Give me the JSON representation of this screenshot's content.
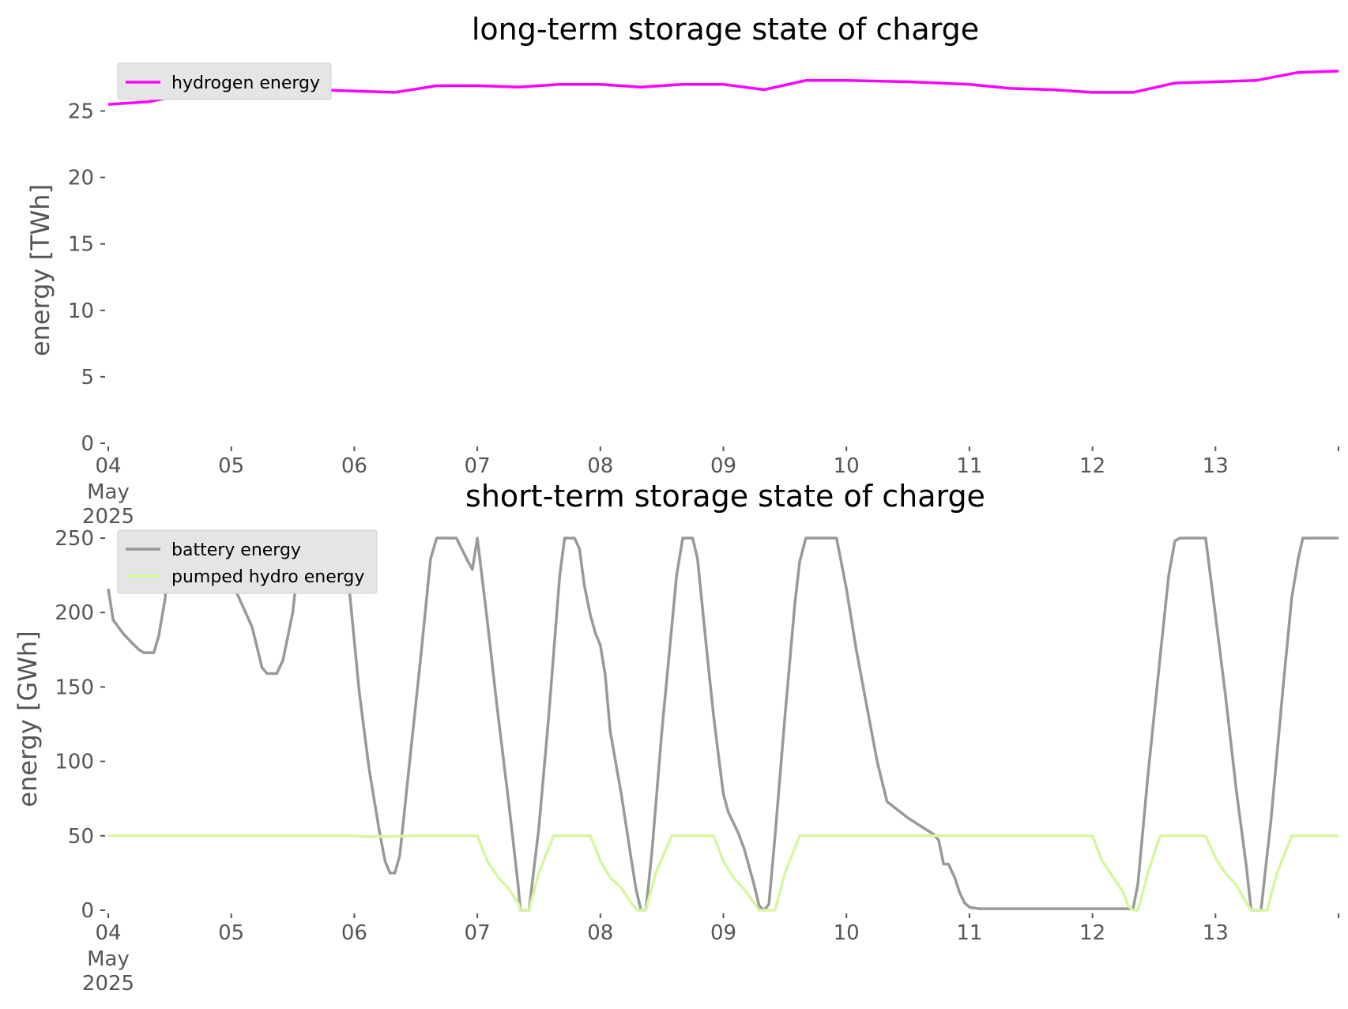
{
  "chart_data": [
    {
      "type": "line",
      "title": "long-term storage state of charge",
      "xlabel": "",
      "ylabel": "energy [TWh]",
      "xlim": [
        0,
        10
      ],
      "ylim": [
        0,
        28
      ],
      "grid": false,
      "legend_position": "top-left",
      "x_ticks": [
        {
          "x": 0,
          "label": "04",
          "sub": [
            "May",
            "2025"
          ]
        },
        {
          "x": 1,
          "label": "05"
        },
        {
          "x": 2,
          "label": "06"
        },
        {
          "x": 3,
          "label": "07"
        },
        {
          "x": 4,
          "label": "08"
        },
        {
          "x": 5,
          "label": "09"
        },
        {
          "x": 6,
          "label": "10"
        },
        {
          "x": 7,
          "label": "11"
        },
        {
          "x": 8,
          "label": "12"
        },
        {
          "x": 9,
          "label": "13"
        },
        {
          "x": 10,
          "label": ""
        }
      ],
      "y_ticks": [
        0,
        5,
        10,
        15,
        20,
        25
      ],
      "series": [
        {
          "name": "hydrogen energy",
          "color": "#ff00ff",
          "points": [
            [
              0,
              25.5
            ],
            [
              0.33,
              25.7
            ],
            [
              0.67,
              26.3
            ],
            [
              1,
              26.3
            ],
            [
              1.33,
              26.2
            ],
            [
              1.67,
              26.6
            ],
            [
              2,
              26.5
            ],
            [
              2.33,
              26.4
            ],
            [
              2.67,
              26.9
            ],
            [
              3,
              26.9
            ],
            [
              3.33,
              26.8
            ],
            [
              3.67,
              27.0
            ],
            [
              4,
              27.0
            ],
            [
              4.33,
              26.8
            ],
            [
              4.67,
              27.0
            ],
            [
              5,
              27.0
            ],
            [
              5.33,
              26.6
            ],
            [
              5.67,
              27.3
            ],
            [
              6,
              27.3
            ],
            [
              6.5,
              27.2
            ],
            [
              7,
              27.0
            ],
            [
              7.33,
              26.7
            ],
            [
              7.67,
              26.6
            ],
            [
              8,
              26.4
            ],
            [
              8.33,
              26.4
            ],
            [
              8.67,
              27.1
            ],
            [
              9,
              27.2
            ],
            [
              9.33,
              27.3
            ],
            [
              9.67,
              27.9
            ],
            [
              10,
              28.0
            ]
          ]
        }
      ]
    },
    {
      "type": "line",
      "title": "short-term storage state of charge",
      "xlabel": "",
      "ylabel": "energy [GWh]",
      "xlim": [
        0,
        10
      ],
      "ylim": [
        0,
        250
      ],
      "grid": false,
      "legend_position": "top-left",
      "x_ticks": [
        {
          "x": 0,
          "label": "04",
          "sub": [
            "May",
            "2025"
          ]
        },
        {
          "x": 1,
          "label": "05"
        },
        {
          "x": 2,
          "label": "06"
        },
        {
          "x": 3,
          "label": "07"
        },
        {
          "x": 4,
          "label": "08"
        },
        {
          "x": 5,
          "label": "09"
        },
        {
          "x": 6,
          "label": "10"
        },
        {
          "x": 7,
          "label": "11"
        },
        {
          "x": 8,
          "label": "12"
        },
        {
          "x": 9,
          "label": "13"
        },
        {
          "x": 10,
          "label": ""
        }
      ],
      "y_ticks": [
        0,
        50,
        100,
        150,
        200,
        250
      ],
      "series": [
        {
          "name": "battery energy",
          "color": "#999999",
          "points": [
            [
              0,
              216
            ],
            [
              0.04,
              195
            ],
            [
              0.12,
              186
            ],
            [
              0.2,
              179
            ],
            [
              0.25,
              175
            ],
            [
              0.29,
              173
            ],
            [
              0.33,
              173
            ],
            [
              0.37,
              173
            ],
            [
              0.41,
              184
            ],
            [
              0.46,
              208
            ],
            [
              0.5,
              240
            ],
            [
              0.54,
              250
            ],
            [
              0.67,
              250
            ],
            [
              0.92,
              250
            ],
            [
              1,
              250
            ],
            [
              1.04,
              214
            ],
            [
              1.1,
              203
            ],
            [
              1.17,
              190
            ],
            [
              1.25,
              163
            ],
            [
              1.29,
              159
            ],
            [
              1.37,
              159
            ],
            [
              1.42,
              168
            ],
            [
              1.5,
              200
            ],
            [
              1.54,
              230
            ],
            [
              1.62,
              250
            ],
            [
              1.75,
              250
            ],
            [
              1.8,
              240
            ],
            [
              1.88,
              216
            ],
            [
              1.96,
              215
            ],
            [
              2.04,
              147
            ],
            [
              2.12,
              95
            ],
            [
              2.2,
              55
            ],
            [
              2.25,
              33
            ],
            [
              2.29,
              25
            ],
            [
              2.33,
              25
            ],
            [
              2.37,
              37
            ],
            [
              2.45,
              100
            ],
            [
              2.54,
              170
            ],
            [
              2.62,
              236
            ],
            [
              2.67,
              250
            ],
            [
              2.83,
              250
            ],
            [
              2.92,
              235
            ],
            [
              2.96,
              229
            ],
            [
              3,
              250
            ],
            [
              3.08,
              195
            ],
            [
              3.16,
              137
            ],
            [
              3.25,
              76
            ],
            [
              3.33,
              18
            ],
            [
              3.35,
              0
            ],
            [
              3.42,
              0
            ],
            [
              3.5,
              55
            ],
            [
              3.58,
              130
            ],
            [
              3.67,
              225
            ],
            [
              3.71,
              250
            ],
            [
              3.79,
              250
            ],
            [
              3.83,
              243
            ],
            [
              3.87,
              218
            ],
            [
              3.92,
              198
            ],
            [
              3.96,
              186
            ],
            [
              4,
              178
            ],
            [
              4.04,
              158
            ],
            [
              4.08,
              120
            ],
            [
              4.17,
              78
            ],
            [
              4.25,
              35
            ],
            [
              4.29,
              14
            ],
            [
              4.33,
              0
            ],
            [
              4.37,
              0
            ],
            [
              4.42,
              40
            ],
            [
              4.5,
              120
            ],
            [
              4.58,
              190
            ],
            [
              4.62,
              225
            ],
            [
              4.67,
              250
            ],
            [
              4.75,
              250
            ],
            [
              4.79,
              236
            ],
            [
              4.87,
              170
            ],
            [
              4.92,
              131
            ],
            [
              4.96,
              104
            ],
            [
              5,
              78
            ],
            [
              5.04,
              66
            ],
            [
              5.12,
              52
            ],
            [
              5.17,
              41
            ],
            [
              5.25,
              17
            ],
            [
              5.29,
              3
            ],
            [
              5.33,
              0
            ],
            [
              5.37,
              4
            ],
            [
              5.42,
              50
            ],
            [
              5.5,
              130
            ],
            [
              5.58,
              205
            ],
            [
              5.62,
              234
            ],
            [
              5.67,
              250
            ],
            [
              5.92,
              250
            ],
            [
              6,
              216
            ],
            [
              6.08,
              175
            ],
            [
              6.17,
              135
            ],
            [
              6.25,
              100
            ],
            [
              6.33,
              73
            ],
            [
              6.5,
              62
            ],
            [
              6.67,
              53
            ],
            [
              6.71,
              51
            ],
            [
              6.75,
              47
            ],
            [
              6.79,
              31
            ],
            [
              6.83,
              31
            ],
            [
              6.88,
              22
            ],
            [
              6.92,
              12
            ],
            [
              6.96,
              5
            ],
            [
              7,
              2
            ],
            [
              7.08,
              1
            ],
            [
              8.25,
              1
            ],
            [
              8.33,
              1
            ],
            [
              8.37,
              18
            ],
            [
              8.45,
              90
            ],
            [
              8.55,
              170
            ],
            [
              8.62,
              225
            ],
            [
              8.67,
              248
            ],
            [
              8.71,
              250
            ],
            [
              8.83,
              250
            ],
            [
              8.92,
              250
            ],
            [
              9,
              198
            ],
            [
              9.08,
              145
            ],
            [
              9.17,
              80
            ],
            [
              9.25,
              30
            ],
            [
              9.29,
              0
            ],
            [
              9.37,
              0
            ],
            [
              9.45,
              60
            ],
            [
              9.55,
              150
            ],
            [
              9.62,
              210
            ],
            [
              9.67,
              235
            ],
            [
              9.71,
              250
            ],
            [
              9.83,
              250
            ],
            [
              10,
              250
            ]
          ]
        },
        {
          "name": "pumped hydro energy",
          "color": "#d8f5a2",
          "points": [
            [
              0,
              50
            ],
            [
              2,
              50
            ],
            [
              2.08,
              49.5
            ],
            [
              2.25,
              49.5
            ],
            [
              2.5,
              50
            ],
            [
              3,
              50
            ],
            [
              3.08,
              33
            ],
            [
              3.17,
              22
            ],
            [
              3.25,
              15
            ],
            [
              3.33,
              5
            ],
            [
              3.35,
              0
            ],
            [
              3.42,
              0
            ],
            [
              3.5,
              25
            ],
            [
              3.62,
              50
            ],
            [
              3.92,
              50
            ],
            [
              4,
              33
            ],
            [
              4.08,
              22
            ],
            [
              4.17,
              15
            ],
            [
              4.25,
              5
            ],
            [
              4.3,
              0
            ],
            [
              4.37,
              0
            ],
            [
              4.45,
              25
            ],
            [
              4.58,
              50
            ],
            [
              4.92,
              50
            ],
            [
              5,
              33
            ],
            [
              5.08,
              22
            ],
            [
              5.17,
              14
            ],
            [
              5.25,
              5
            ],
            [
              5.29,
              0
            ],
            [
              5.42,
              0
            ],
            [
              5.5,
              25
            ],
            [
              5.62,
              50
            ],
            [
              8,
              50
            ],
            [
              8.08,
              33
            ],
            [
              8.17,
              22
            ],
            [
              8.25,
              12
            ],
            [
              8.29,
              3
            ],
            [
              8.33,
              0
            ],
            [
              8.37,
              0
            ],
            [
              8.45,
              25
            ],
            [
              8.55,
              50
            ],
            [
              8.92,
              50
            ],
            [
              9,
              35
            ],
            [
              9.08,
              25
            ],
            [
              9.17,
              17
            ],
            [
              9.25,
              5
            ],
            [
              9.29,
              0
            ],
            [
              9.42,
              0
            ],
            [
              9.5,
              25
            ],
            [
              9.62,
              50
            ],
            [
              10,
              50
            ]
          ]
        }
      ]
    }
  ]
}
